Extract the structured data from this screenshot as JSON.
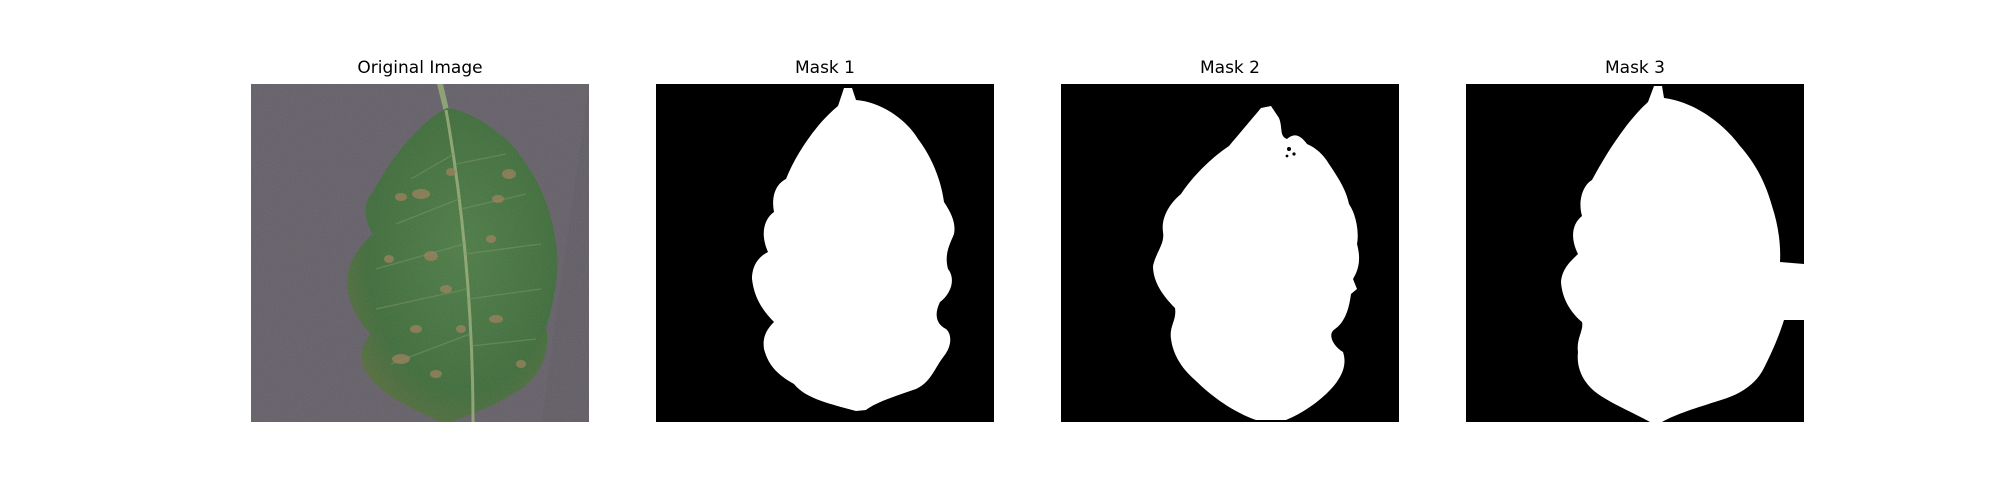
{
  "panels": [
    {
      "title": "Original Image"
    },
    {
      "title": "Mask 1"
    },
    {
      "title": "Mask 2"
    },
    {
      "title": "Mask 3"
    }
  ],
  "colors": {
    "background": "#5f5a62",
    "leaf": "#3f6e3a",
    "mask_background": "#000000",
    "mask_foreground": "#ffffff"
  }
}
